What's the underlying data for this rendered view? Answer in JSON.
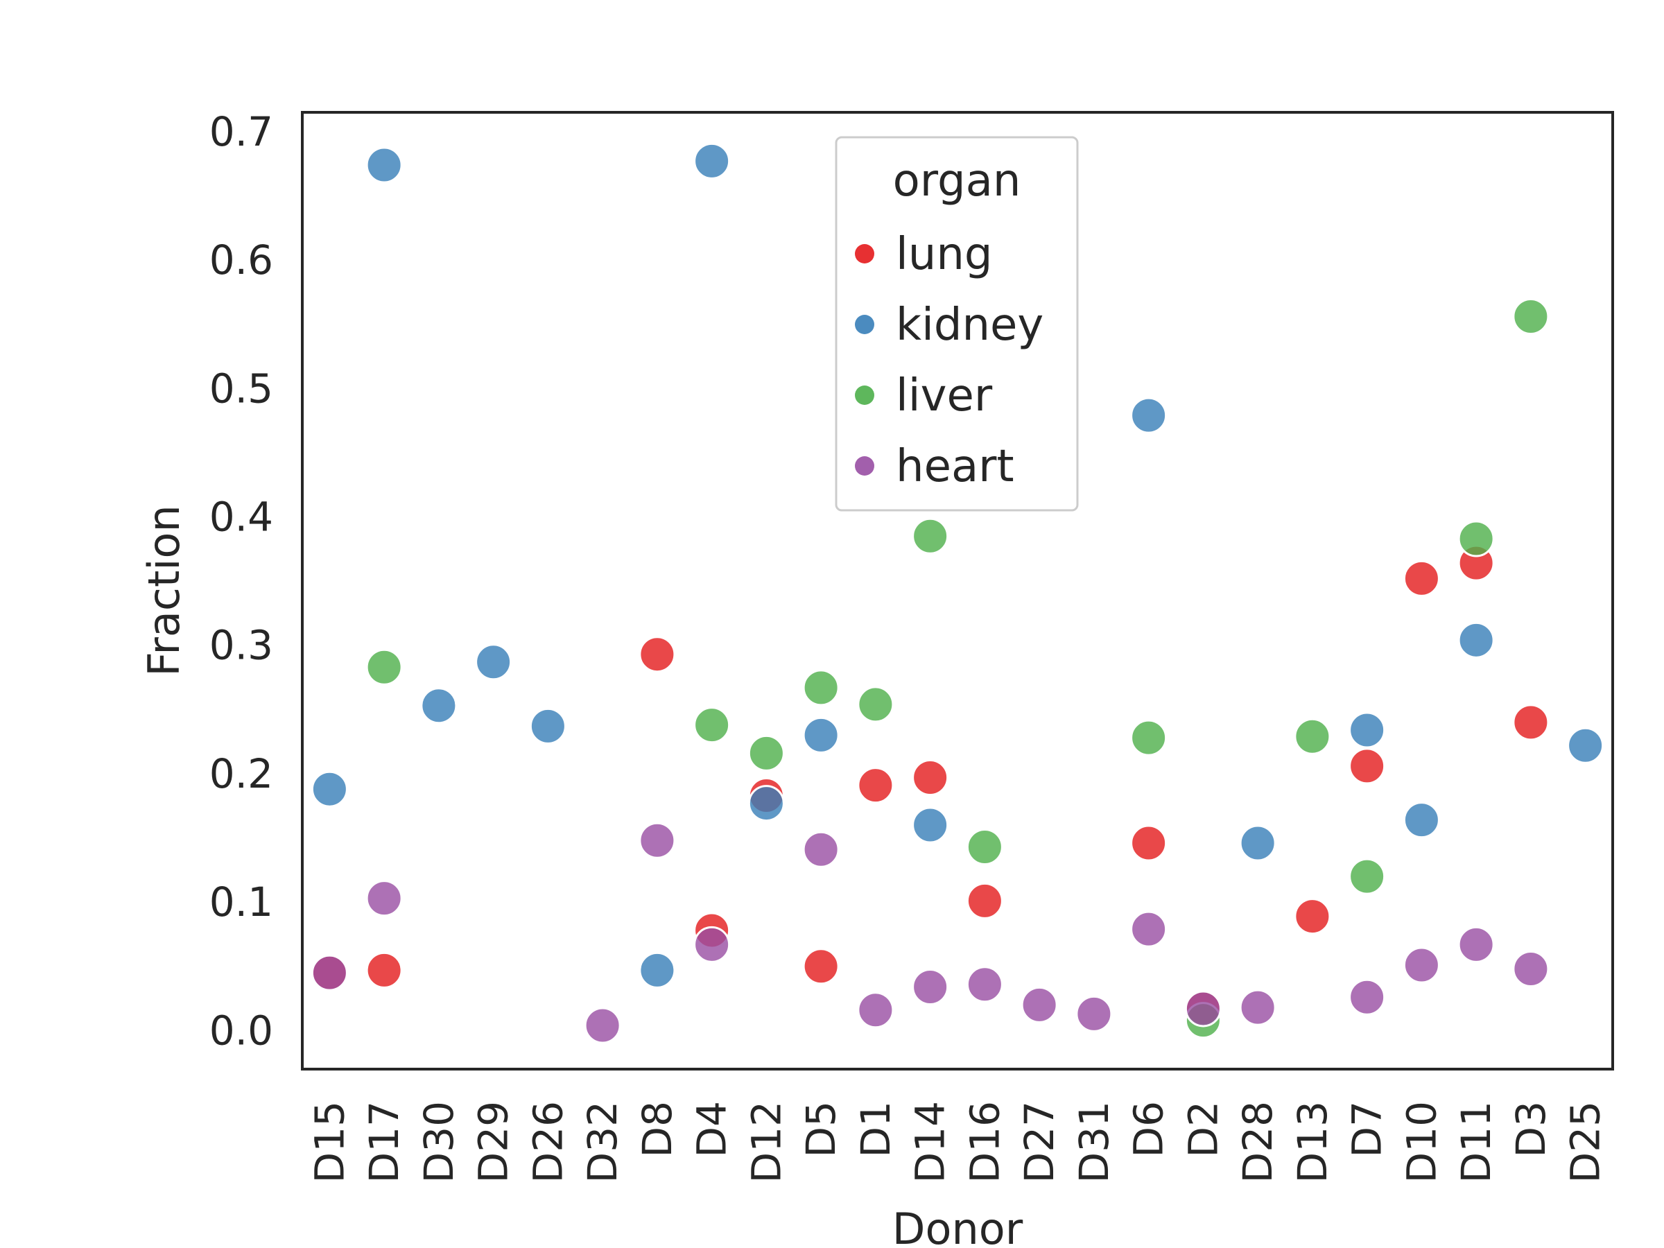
{
  "chart_data": {
    "type": "scatter",
    "xlabel": "Donor",
    "ylabel": "Fraction",
    "ylim": [
      -0.03,
      0.715
    ],
    "yticks": [
      "0.0",
      "0.1",
      "0.2",
      "0.3",
      "0.4",
      "0.5",
      "0.6",
      "0.7"
    ],
    "ytick_values": [
      0,
      0.1,
      0.2,
      0.3,
      0.4,
      0.5,
      0.6,
      0.7
    ],
    "categories": [
      "D15",
      "D17",
      "D30",
      "D29",
      "D26",
      "D32",
      "D8",
      "D4",
      "D12",
      "D5",
      "D1",
      "D14",
      "D16",
      "D27",
      "D31",
      "D6",
      "D2",
      "D28",
      "D13",
      "D7",
      "D10",
      "D11",
      "D3",
      "D25"
    ],
    "grid": false,
    "legend": {
      "title": "organ",
      "placement": "upper-center"
    },
    "series": [
      {
        "name": "lung",
        "color": "#e41a1c",
        "points": [
          [
            "D15",
            0.045
          ],
          [
            "D17",
            0.047
          ],
          [
            "D8",
            0.293
          ],
          [
            "D4",
            0.078
          ],
          [
            "D12",
            0.183
          ],
          [
            "D5",
            0.05
          ],
          [
            "D1",
            0.191
          ],
          [
            "D14",
            0.197
          ],
          [
            "D16",
            0.101
          ],
          [
            "D6",
            0.146
          ],
          [
            "D2",
            0.018
          ],
          [
            "D13",
            0.089
          ],
          [
            "D7",
            0.206
          ],
          [
            "D10",
            0.352
          ],
          [
            "D11",
            0.364
          ],
          [
            "D3",
            0.24
          ]
        ]
      },
      {
        "name": "kidney",
        "color": "#377eb8",
        "points": [
          [
            "D15",
            0.188
          ],
          [
            "D17",
            0.674
          ],
          [
            "D30",
            0.253
          ],
          [
            "D29",
            0.287
          ],
          [
            "D26",
            0.237
          ],
          [
            "D8",
            0.047
          ],
          [
            "D4",
            0.677
          ],
          [
            "D12",
            0.177
          ],
          [
            "D5",
            0.23
          ],
          [
            "D14",
            0.16
          ],
          [
            "D6",
            0.479
          ],
          [
            "D28",
            0.146
          ],
          [
            "D7",
            0.234
          ],
          [
            "D10",
            0.164
          ],
          [
            "D11",
            0.304
          ],
          [
            "D25",
            0.222
          ]
        ]
      },
      {
        "name": "liver",
        "color": "#4daf4a",
        "points": [
          [
            "D17",
            0.283
          ],
          [
            "D4",
            0.238
          ],
          [
            "D12",
            0.216
          ],
          [
            "D5",
            0.267
          ],
          [
            "D1",
            0.254
          ],
          [
            "D14",
            0.385
          ],
          [
            "D16",
            0.143
          ],
          [
            "D6",
            0.228
          ],
          [
            "D2",
            0.008
          ],
          [
            "D13",
            0.229
          ],
          [
            "D7",
            0.12
          ],
          [
            "D11",
            0.383
          ],
          [
            "D3",
            0.556
          ]
        ]
      },
      {
        "name": "heart",
        "color": "#984ea3",
        "points": [
          [
            "D15",
            0.045
          ],
          [
            "D17",
            0.103
          ],
          [
            "D32",
            0.004
          ],
          [
            "D8",
            0.148
          ],
          [
            "D4",
            0.067
          ],
          [
            "D5",
            0.141
          ],
          [
            "D1",
            0.016
          ],
          [
            "D14",
            0.034
          ],
          [
            "D16",
            0.036
          ],
          [
            "D27",
            0.02
          ],
          [
            "D31",
            0.013
          ],
          [
            "D6",
            0.079
          ],
          [
            "D2",
            0.017
          ],
          [
            "D28",
            0.018
          ],
          [
            "D7",
            0.026
          ],
          [
            "D10",
            0.051
          ],
          [
            "D11",
            0.067
          ],
          [
            "D3",
            0.048
          ]
        ]
      }
    ]
  }
}
